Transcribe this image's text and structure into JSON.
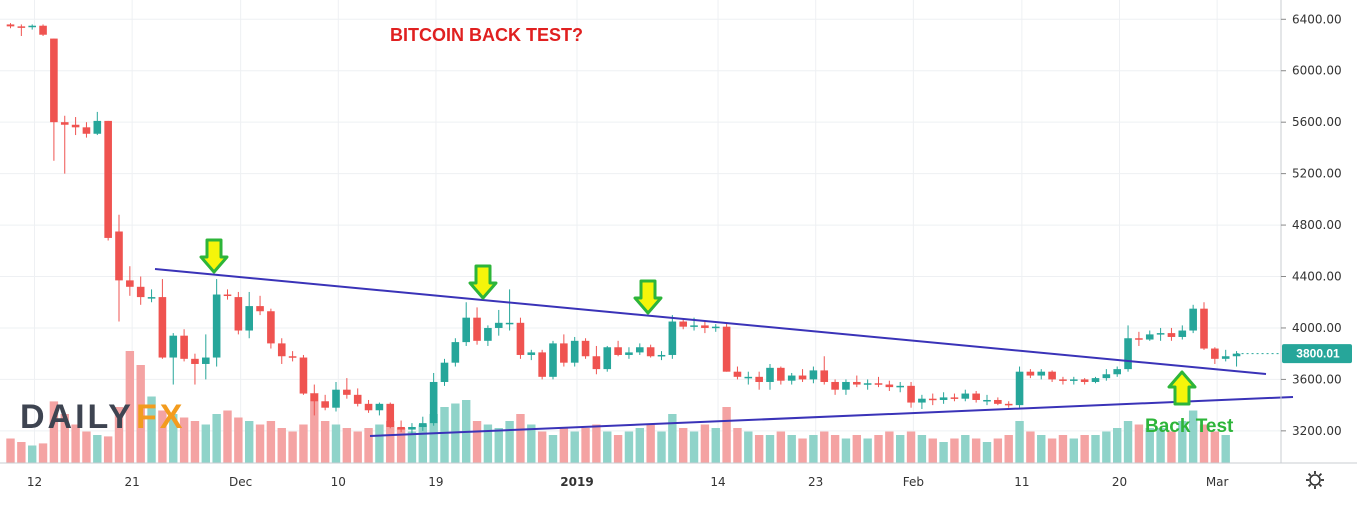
{
  "colors": {
    "up": "#26a69a",
    "down": "#ef5350",
    "up_volume": "#8fd3c9",
    "down_volume": "#f4a3a3",
    "trendline": "#3a33b8",
    "grid": "#eef0f3",
    "arrow_fill": "#f5f50a",
    "arrow_stroke": "#2db53a",
    "price_label_bg": "#26a69a",
    "title": "#e02020",
    "annotation": "#2db53a",
    "logo_dark": "#3e4451",
    "logo_orange": "#f39c1e"
  },
  "logo": {
    "part1": "DAILY",
    "part2": "FX"
  },
  "settings_icon": "gear-icon",
  "chart_data": {
    "type": "candlestick",
    "title": "BITCOIN BACK TEST?",
    "annotation": "Back Test",
    "y_axis": {
      "ylim": [
        2950,
        6550
      ],
      "ticks": [
        "6400.00",
        "6000.00",
        "5600.00",
        "5200.00",
        "4800.00",
        "4400.00",
        "4000.00",
        "3600.00",
        "3200.00"
      ],
      "tick_values": [
        6400,
        6000,
        5600,
        5200,
        4800,
        4400,
        4000,
        3600,
        3200
      ]
    },
    "current_price": {
      "label": "3800.01",
      "value": 3800.01
    },
    "x_ticks": [
      {
        "label": "12",
        "day": 0,
        "bold": false
      },
      {
        "label": "21",
        "day": 9,
        "bold": false
      },
      {
        "label": "Dec",
        "day": 19,
        "bold": false
      },
      {
        "label": "10",
        "day": 28,
        "bold": false
      },
      {
        "label": "19",
        "day": 37,
        "bold": false
      },
      {
        "label": "2019",
        "day": 50,
        "bold": true
      },
      {
        "label": "14",
        "day": 63,
        "bold": false
      },
      {
        "label": "23",
        "day": 72,
        "bold": false
      },
      {
        "label": "Feb",
        "day": 81,
        "bold": false
      },
      {
        "label": "11",
        "day": 91,
        "bold": false
      },
      {
        "label": "20",
        "day": 100,
        "bold": false
      },
      {
        "label": "Mar",
        "day": 109,
        "bold": false
      }
    ],
    "ohlc": [
      [
        6360,
        6370,
        6330,
        6345
      ],
      [
        6345,
        6360,
        6270,
        6340
      ],
      [
        6340,
        6360,
        6320,
        6350
      ],
      [
        6350,
        6360,
        6270,
        6280
      ],
      [
        6250,
        6250,
        5300,
        5600
      ],
      [
        5600,
        5650,
        5200,
        5580
      ],
      [
        5580,
        5640,
        5500,
        5560
      ],
      [
        5560,
        5600,
        5480,
        5510
      ],
      [
        5510,
        5680,
        5500,
        5610
      ],
      [
        5610,
        5610,
        4680,
        4700
      ],
      [
        4750,
        4880,
        4050,
        4370
      ],
      [
        4370,
        4480,
        4250,
        4320
      ],
      [
        4320,
        4400,
        4180,
        4240
      ],
      [
        4240,
        4300,
        4200,
        4240
      ],
      [
        4240,
        4380,
        3760,
        3770
      ],
      [
        3770,
        3960,
        3560,
        3940
      ],
      [
        3940,
        3990,
        3740,
        3760
      ],
      [
        3760,
        3800,
        3560,
        3720
      ],
      [
        3720,
        3950,
        3600,
        3770
      ],
      [
        3770,
        4380,
        3700,
        4260
      ],
      [
        4260,
        4300,
        4220,
        4250
      ],
      [
        4240,
        4280,
        3950,
        3980
      ],
      [
        3980,
        4280,
        3920,
        4170
      ],
      [
        4170,
        4250,
        4100,
        4130
      ],
      [
        4130,
        4150,
        3840,
        3880
      ],
      [
        3880,
        3920,
        3720,
        3780
      ],
      [
        3780,
        3820,
        3740,
        3770
      ],
      [
        3770,
        3790,
        3480,
        3490
      ],
      [
        3490,
        3560,
        3320,
        3430
      ],
      [
        3430,
        3480,
        3360,
        3380
      ],
      [
        3380,
        3580,
        3350,
        3520
      ],
      [
        3520,
        3610,
        3450,
        3480
      ],
      [
        3480,
        3530,
        3390,
        3410
      ],
      [
        3410,
        3440,
        3340,
        3360
      ],
      [
        3360,
        3420,
        3320,
        3410
      ],
      [
        3410,
        3420,
        3220,
        3230
      ],
      [
        3230,
        3280,
        3190,
        3210
      ],
      [
        3210,
        3260,
        3180,
        3230
      ],
      [
        3230,
        3310,
        3200,
        3260
      ],
      [
        3260,
        3650,
        3240,
        3580
      ],
      [
        3580,
        3760,
        3550,
        3730
      ],
      [
        3730,
        3920,
        3700,
        3890
      ],
      [
        3890,
        4200,
        3860,
        4080
      ],
      [
        4080,
        4160,
        3870,
        3900
      ],
      [
        3900,
        4020,
        3860,
        4000
      ],
      [
        4000,
        4140,
        3940,
        4040
      ],
      [
        4040,
        4300,
        3980,
        4040
      ],
      [
        4040,
        4080,
        3760,
        3790
      ],
      [
        3790,
        3830,
        3750,
        3810
      ],
      [
        3810,
        3830,
        3600,
        3620
      ],
      [
        3620,
        3900,
        3600,
        3880
      ],
      [
        3880,
        3950,
        3700,
        3730
      ],
      [
        3730,
        3930,
        3700,
        3900
      ],
      [
        3900,
        3920,
        3760,
        3780
      ],
      [
        3780,
        3860,
        3640,
        3680
      ],
      [
        3680,
        3860,
        3660,
        3850
      ],
      [
        3850,
        3900,
        3780,
        3790
      ],
      [
        3790,
        3850,
        3760,
        3810
      ],
      [
        3810,
        3880,
        3790,
        3850
      ],
      [
        3850,
        3870,
        3770,
        3780
      ],
      [
        3780,
        3820,
        3750,
        3790
      ],
      [
        3790,
        4100,
        3760,
        4050
      ],
      [
        4050,
        4070,
        3990,
        4010
      ],
      [
        4010,
        4080,
        3980,
        4020
      ],
      [
        4020,
        4050,
        3960,
        4000
      ],
      [
        4000,
        4030,
        3970,
        4010
      ],
      [
        4010,
        4040,
        3660,
        3660
      ],
      [
        3660,
        3700,
        3600,
        3620
      ],
      [
        3620,
        3660,
        3560,
        3620
      ],
      [
        3620,
        3660,
        3520,
        3580
      ],
      [
        3580,
        3720,
        3520,
        3690
      ],
      [
        3690,
        3700,
        3560,
        3590
      ],
      [
        3590,
        3650,
        3560,
        3630
      ],
      [
        3630,
        3680,
        3580,
        3600
      ],
      [
        3600,
        3700,
        3570,
        3670
      ],
      [
        3670,
        3780,
        3560,
        3580
      ],
      [
        3580,
        3600,
        3480,
        3520
      ],
      [
        3520,
        3600,
        3480,
        3580
      ],
      [
        3580,
        3630,
        3540,
        3560
      ],
      [
        3560,
        3600,
        3520,
        3570
      ],
      [
        3570,
        3620,
        3540,
        3560
      ],
      [
        3560,
        3590,
        3510,
        3540
      ],
      [
        3540,
        3580,
        3500,
        3550
      ],
      [
        3550,
        3580,
        3380,
        3420
      ],
      [
        3420,
        3480,
        3370,
        3450
      ],
      [
        3450,
        3490,
        3400,
        3440
      ],
      [
        3440,
        3500,
        3410,
        3460
      ],
      [
        3460,
        3490,
        3430,
        3450
      ],
      [
        3450,
        3520,
        3430,
        3490
      ],
      [
        3490,
        3510,
        3420,
        3440
      ],
      [
        3440,
        3480,
        3400,
        3440
      ],
      [
        3440,
        3460,
        3400,
        3410
      ],
      [
        3410,
        3430,
        3380,
        3400
      ],
      [
        3400,
        3700,
        3380,
        3660
      ],
      [
        3660,
        3680,
        3610,
        3630
      ],
      [
        3630,
        3680,
        3600,
        3660
      ],
      [
        3660,
        3670,
        3580,
        3600
      ],
      [
        3600,
        3620,
        3560,
        3590
      ],
      [
        3590,
        3620,
        3560,
        3600
      ],
      [
        3600,
        3610,
        3560,
        3580
      ],
      [
        3580,
        3620,
        3570,
        3610
      ],
      [
        3610,
        3680,
        3590,
        3640
      ],
      [
        3640,
        3700,
        3620,
        3680
      ],
      [
        3680,
        4020,
        3660,
        3920
      ],
      [
        3920,
        3970,
        3860,
        3910
      ],
      [
        3910,
        3980,
        3900,
        3950
      ],
      [
        3950,
        4000,
        3900,
        3960
      ],
      [
        3960,
        4000,
        3900,
        3930
      ],
      [
        3930,
        4020,
        3910,
        3980
      ],
      [
        3980,
        4180,
        3960,
        4150
      ],
      [
        4150,
        4200,
        3830,
        3840
      ],
      [
        3840,
        3850,
        3720,
        3760
      ],
      [
        3760,
        3830,
        3740,
        3780
      ],
      [
        3780,
        3820,
        3700,
        3800
      ]
    ],
    "volume": [
      35,
      30,
      25,
      28,
      88,
      70,
      55,
      45,
      40,
      38,
      80,
      160,
      140,
      95,
      75,
      70,
      65,
      60,
      55,
      70,
      75,
      65,
      60,
      55,
      60,
      50,
      45,
      55,
      100,
      60,
      55,
      50,
      45,
      50,
      55,
      60,
      50,
      45,
      55,
      70,
      80,
      85,
      90,
      60,
      55,
      50,
      60,
      70,
      55,
      45,
      40,
      50,
      45,
      50,
      55,
      45,
      40,
      45,
      50,
      55,
      45,
      70,
      50,
      45,
      55,
      50,
      80,
      50,
      45,
      40,
      40,
      45,
      40,
      35,
      40,
      45,
      40,
      35,
      40,
      35,
      40,
      45,
      40,
      45,
      40,
      35,
      30,
      35,
      40,
      35,
      30,
      35,
      40,
      60,
      45,
      40,
      35,
      40,
      35,
      40,
      40,
      45,
      50,
      60,
      55,
      50,
      50,
      45,
      60,
      75,
      55,
      45,
      40
    ]
  }
}
